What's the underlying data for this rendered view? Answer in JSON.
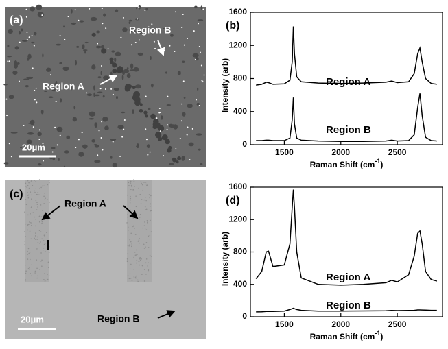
{
  "images": [
    {
      "panel_label": "(a)",
      "annotations": [
        "Region A",
        "Region B"
      ],
      "scale_bar": "20μm"
    },
    {
      "panel_label": "(c)",
      "annotations": [
        "Region A",
        "Region B"
      ],
      "scale_bar": "20μm"
    }
  ],
  "chart_data": [
    {
      "type": "line",
      "panel_label": "(b)",
      "ylabel": "Intensity (arb)",
      "xlabel": [
        "Raman Shift (cm",
        "-1",
        ")"
      ],
      "xlim": [
        1200,
        2900
      ],
      "xticks": [
        1500,
        2000,
        2500
      ],
      "ylim": [
        0,
        1600
      ],
      "yticks": [
        0,
        400,
        800,
        1200,
        1600
      ],
      "x": [
        1250,
        1300,
        1340,
        1360,
        1400,
        1500,
        1550,
        1570,
        1580,
        1590,
        1610,
        1650,
        1800,
        2000,
        2200,
        2400,
        2450,
        2500,
        2600,
        2650,
        2680,
        2700,
        2720,
        2750,
        2800,
        2850
      ],
      "series": [
        {
          "name": "Region A",
          "color": "#000000",
          "values": [
            720,
            730,
            755,
            750,
            730,
            735,
            780,
            1000,
            1430,
            1100,
            820,
            760,
            745,
            740,
            745,
            755,
            770,
            750,
            760,
            860,
            1100,
            1170,
            1000,
            800,
            740,
            730
          ]
        },
        {
          "name": "Region B",
          "color": "#000000",
          "values": [
            50,
            50,
            55,
            55,
            50,
            50,
            80,
            300,
            570,
            250,
            80,
            55,
            45,
            40,
            40,
            45,
            55,
            45,
            50,
            120,
            450,
            620,
            350,
            90,
            50,
            45
          ]
        }
      ]
    },
    {
      "type": "line",
      "panel_label": "(d)",
      "ylabel": "Intensity (arb)",
      "xlabel": [
        "Raman Shift (cm",
        "-1",
        ")"
      ],
      "xlim": [
        1200,
        2900
      ],
      "xticks": [
        1500,
        2000,
        2500
      ],
      "ylim": [
        0,
        1600
      ],
      "yticks": [
        0,
        400,
        800,
        1200,
        1600
      ],
      "x": [
        1250,
        1300,
        1340,
        1360,
        1400,
        1500,
        1550,
        1570,
        1580,
        1590,
        1610,
        1650,
        1800,
        2000,
        2200,
        2400,
        2450,
        2500,
        2600,
        2650,
        2680,
        2700,
        2720,
        2750,
        2800,
        2850
      ],
      "series": [
        {
          "name": "Region A",
          "color": "#000000",
          "values": [
            470,
            560,
            800,
            810,
            620,
            640,
            900,
            1350,
            1570,
            1350,
            800,
            480,
            400,
            390,
            400,
            420,
            450,
            430,
            520,
            750,
            1030,
            1060,
            900,
            560,
            460,
            440
          ]
        },
        {
          "name": "Region B",
          "color": "#000000",
          "values": [
            60,
            62,
            65,
            65,
            65,
            70,
            90,
            100,
            105,
            100,
            90,
            80,
            70,
            70,
            72,
            74,
            78,
            76,
            78,
            80,
            85,
            85,
            84,
            82,
            80,
            80
          ]
        }
      ]
    }
  ]
}
